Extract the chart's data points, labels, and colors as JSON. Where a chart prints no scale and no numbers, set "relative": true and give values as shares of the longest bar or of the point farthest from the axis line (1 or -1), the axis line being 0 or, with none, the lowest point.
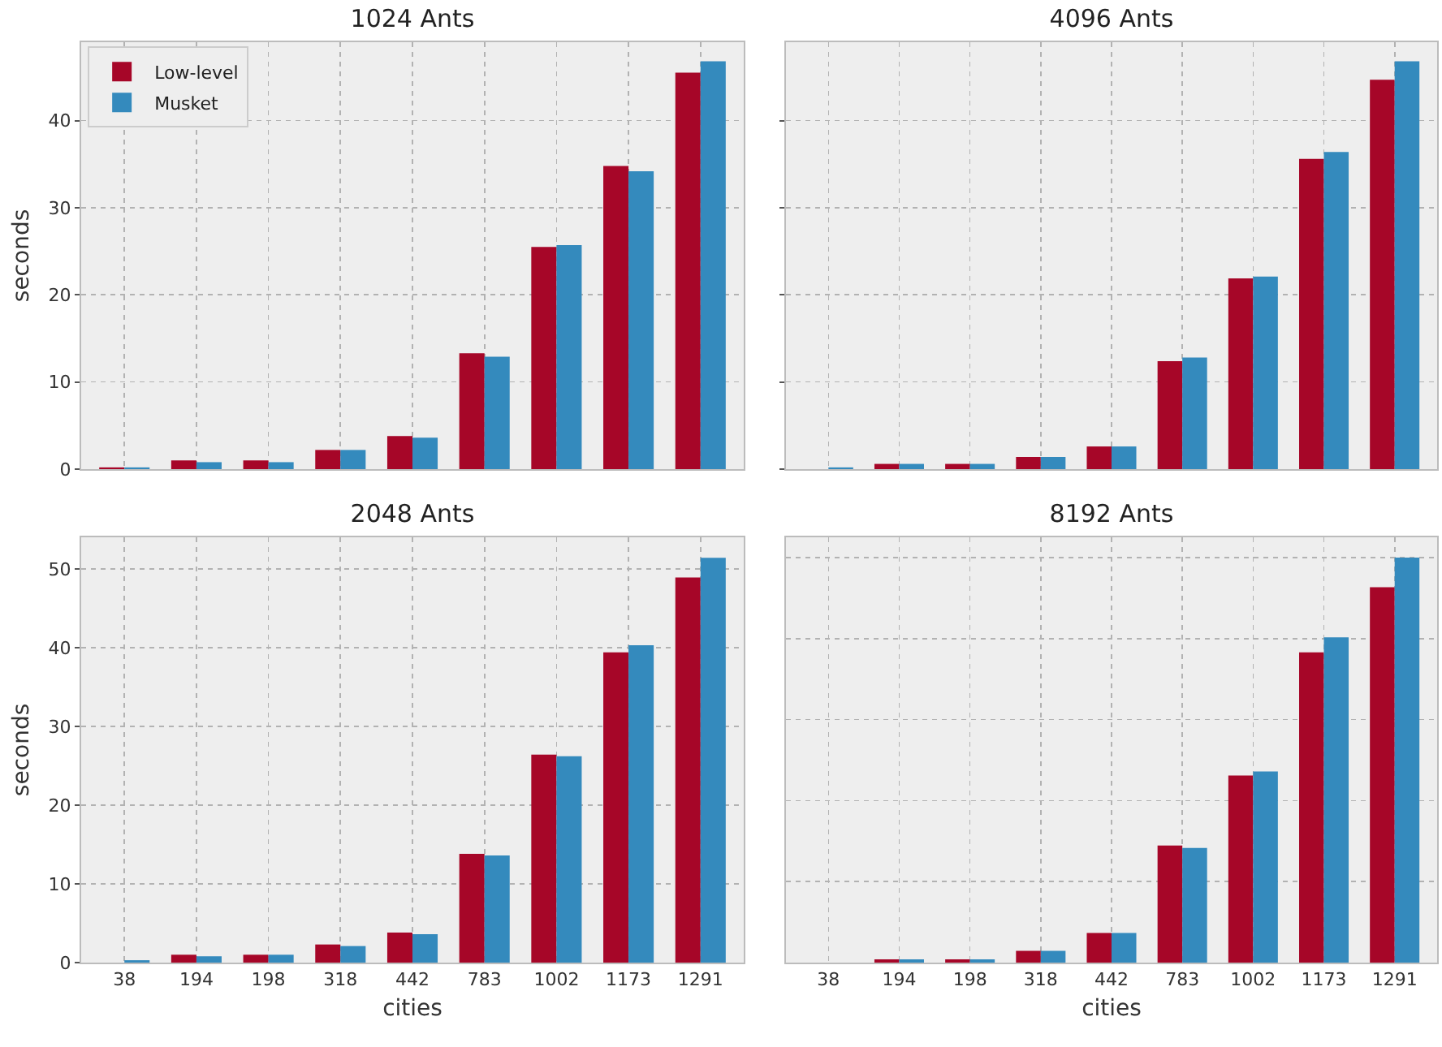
{
  "chart_data": [
    {
      "type": "bar",
      "title": "1024 Ants",
      "ylabel": "seconds",
      "categories": [
        "38",
        "194",
        "198",
        "318",
        "442",
        "783",
        "1002",
        "1173",
        "1291"
      ],
      "series": [
        {
          "name": "Low-level",
          "color": "#a60628",
          "values": [
            0.2,
            1.0,
            1.0,
            2.2,
            3.8,
            13.3,
            25.5,
            34.8,
            45.5
          ]
        },
        {
          "name": "Musket",
          "color": "#348abd",
          "values": [
            0.2,
            0.8,
            0.8,
            2.2,
            3.6,
            12.9,
            25.7,
            34.2,
            46.8
          ]
        }
      ],
      "ylim": [
        0,
        49
      ],
      "yticks": [
        0,
        10,
        20,
        30,
        40
      ],
      "grid": true,
      "legend": "top left",
      "tick_labels": "y"
    },
    {
      "type": "bar",
      "title": "4096 Ants",
      "categories": [
        "38",
        "194",
        "198",
        "318",
        "442",
        "783",
        "1002",
        "1173",
        "1291"
      ],
      "series": [
        {
          "color": "#a60628",
          "values": [
            0,
            0.6,
            0.6,
            1.4,
            2.6,
            12.4,
            21.9,
            35.6,
            44.7
          ]
        },
        {
          "color": "#348abd",
          "values": [
            0.2,
            0.6,
            0.6,
            1.4,
            2.6,
            12.8,
            22.1,
            36.4,
            46.8
          ]
        }
      ],
      "ylim": [
        0,
        49
      ],
      "yticks": [
        0,
        10,
        20,
        30,
        40
      ],
      "grid": true,
      "tick_labels": false
    },
    {
      "type": "bar",
      "title": "2048 Ants",
      "xlabel": "cities",
      "ylabel": "seconds",
      "categories": [
        "38",
        "194",
        "198",
        "318",
        "442",
        "783",
        "1002",
        "1173",
        "1291"
      ],
      "series": [
        {
          "color": "#a60628",
          "values": [
            0,
            1.0,
            1.0,
            2.3,
            3.8,
            13.8,
            26.4,
            39.4,
            48.9
          ]
        },
        {
          "color": "#348abd",
          "values": [
            0.3,
            0.8,
            1.0,
            2.1,
            3.6,
            13.6,
            26.2,
            40.3,
            51.4
          ]
        }
      ],
      "ylim": [
        0,
        54
      ],
      "yticks": [
        0,
        10,
        20,
        30,
        40,
        50
      ],
      "grid": true
    },
    {
      "type": "bar",
      "title": "8192 Ants",
      "xlabel": "cities",
      "categories": [
        "38",
        "194",
        "198",
        "318",
        "442",
        "783",
        "1002",
        "1173",
        "1291"
      ],
      "series": [
        {
          "color": "#a60628",
          "values": [
            0,
            0.008,
            0.008,
            0.029,
            0.073,
            0.289,
            0.462,
            0.766,
            0.927
          ]
        },
        {
          "color": "#348abd",
          "values": [
            0,
            0.008,
            0.008,
            0.029,
            0.073,
            0.283,
            0.472,
            0.803,
            1
          ]
        }
      ],
      "relative": true,
      "grid": true,
      "tick_labels": "x"
    }
  ]
}
